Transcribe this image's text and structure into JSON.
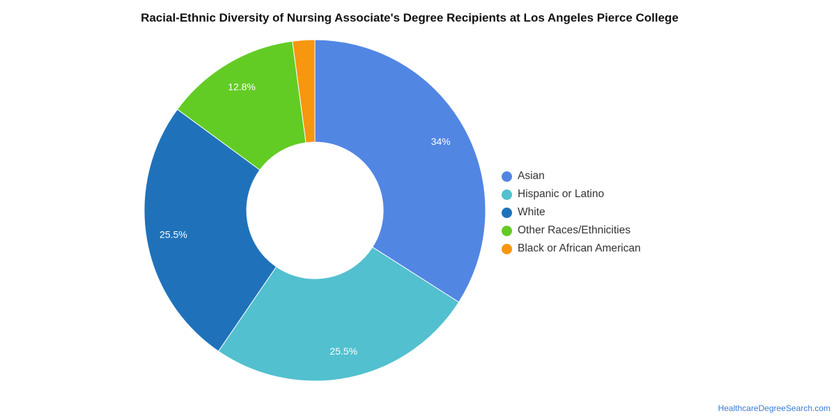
{
  "chart_data": {
    "type": "pie",
    "title": "Racial-Ethnic Diversity of Nursing Associate's Degree Recipients at Los Angeles Pierce College",
    "donut": true,
    "legend_position": "right",
    "slices": [
      {
        "label": "Asian",
        "value": 34,
        "value_label": "34%",
        "color": "#5286e3"
      },
      {
        "label": "Hispanic or Latino",
        "value": 25.5,
        "value_label": "25.5%",
        "color": "#52c0cf"
      },
      {
        "label": "White",
        "value": 25.5,
        "value_label": "25.5%",
        "color": "#1f72ba"
      },
      {
        "label": "Other Races/Ethnicities",
        "value": 12.8,
        "value_label": "12.8%",
        "color": "#62cc24"
      },
      {
        "label": "Black or African American",
        "value": 2.1,
        "value_label": "",
        "color": "#f7960f"
      }
    ]
  },
  "watermark": "HealthcareDegreeSearch.com"
}
